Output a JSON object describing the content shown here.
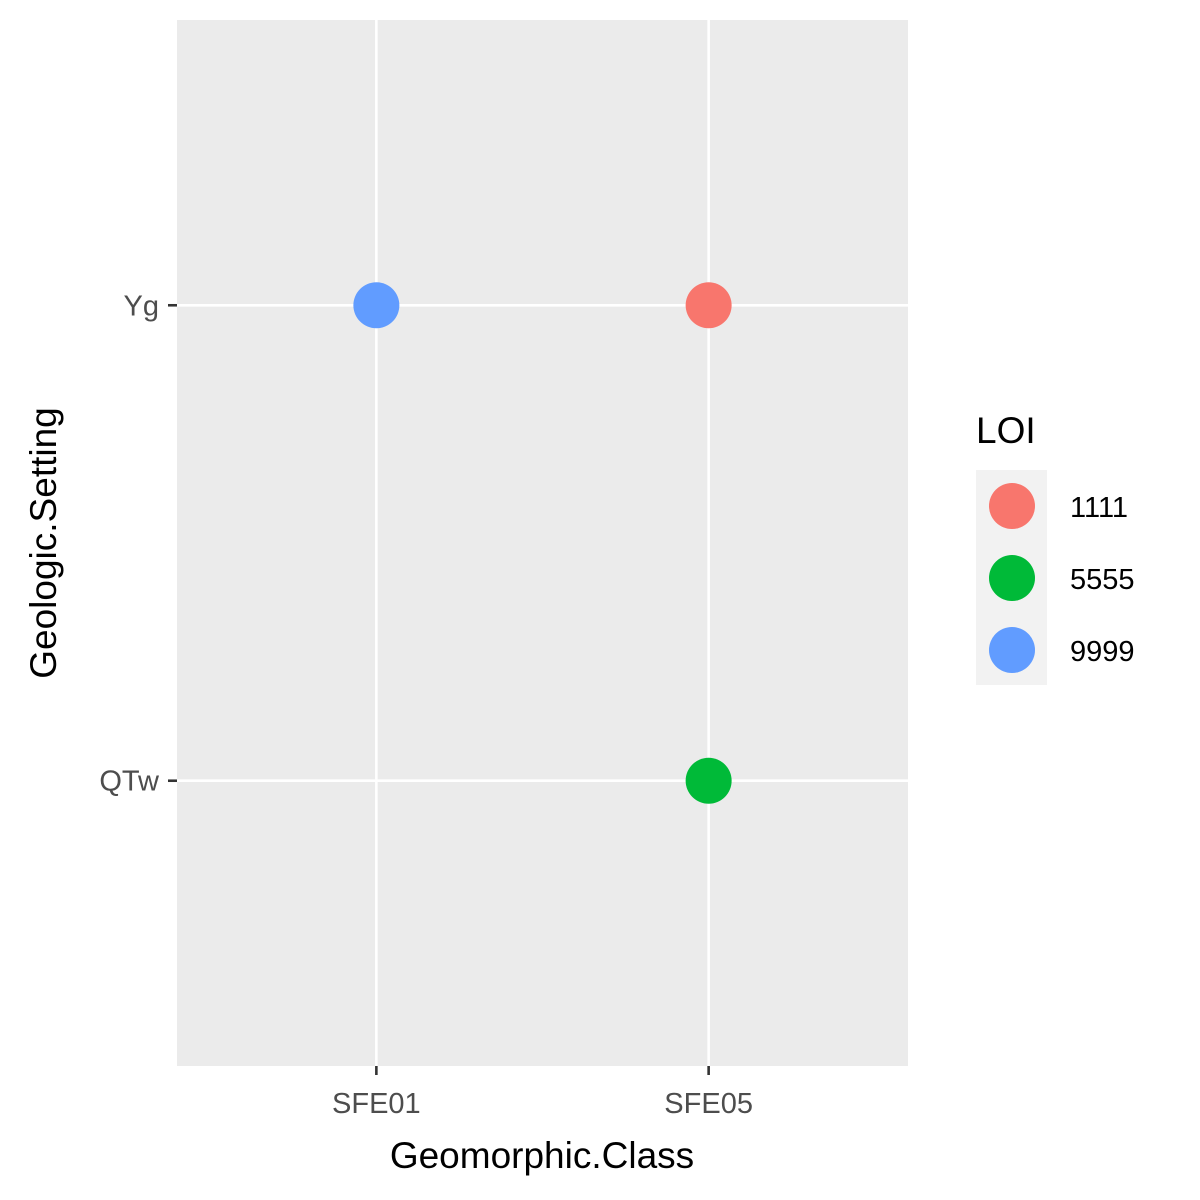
{
  "chart_data": {
    "type": "scatter",
    "title": "",
    "xlabel": "Geomorphic.Class",
    "ylabel": "Geologic.Setting",
    "x_categories": [
      "SFE01",
      "SFE05"
    ],
    "y_categories": [
      "QTw",
      "Yg"
    ],
    "points": [
      {
        "x": "SFE01",
        "y": "Yg",
        "loi": "9999"
      },
      {
        "x": "SFE05",
        "y": "Yg",
        "loi": "1111"
      },
      {
        "x": "SFE05",
        "y": "QTw",
        "loi": "5555"
      }
    ],
    "legend": {
      "title": "LOI",
      "placement": "right",
      "entries": [
        {
          "label": "1111",
          "color": "#F8766D"
        },
        {
          "label": "5555",
          "color": "#00BA38"
        },
        {
          "label": "9999",
          "color": "#619CFF"
        }
      ]
    },
    "grid": true,
    "panel_color": "#EBEBEB",
    "grid_color": "#FFFFFF"
  }
}
